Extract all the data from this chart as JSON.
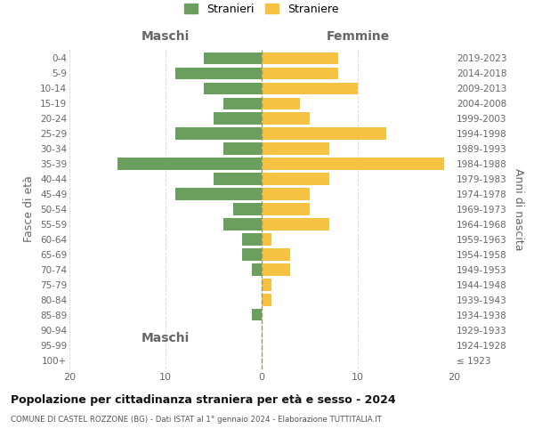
{
  "age_groups": [
    "100+",
    "95-99",
    "90-94",
    "85-89",
    "80-84",
    "75-79",
    "70-74",
    "65-69",
    "60-64",
    "55-59",
    "50-54",
    "45-49",
    "40-44",
    "35-39",
    "30-34",
    "25-29",
    "20-24",
    "15-19",
    "10-14",
    "5-9",
    "0-4"
  ],
  "birth_years": [
    "≤ 1923",
    "1924-1928",
    "1929-1933",
    "1934-1938",
    "1939-1943",
    "1944-1948",
    "1949-1953",
    "1954-1958",
    "1959-1963",
    "1964-1968",
    "1969-1973",
    "1974-1978",
    "1979-1983",
    "1984-1988",
    "1989-1993",
    "1994-1998",
    "1999-2003",
    "2004-2008",
    "2009-2013",
    "2014-2018",
    "2019-2023"
  ],
  "maschi": [
    0,
    0,
    0,
    1,
    0,
    0,
    1,
    2,
    2,
    4,
    3,
    9,
    5,
    15,
    4,
    9,
    5,
    4,
    6,
    9,
    6
  ],
  "femmine": [
    0,
    0,
    0,
    0,
    1,
    1,
    3,
    3,
    1,
    7,
    5,
    5,
    7,
    19,
    7,
    13,
    5,
    4,
    10,
    8,
    8
  ],
  "color_maschi": "#6a9f5e",
  "color_femmine": "#f5c242",
  "title": "Popolazione per cittadinanza straniera per età e sesso - 2024",
  "subtitle": "COMUNE DI CASTEL ROZZONE (BG) - Dati ISTAT al 1° gennaio 2024 - Elaborazione TUTTITALIA.IT",
  "ylabel_left": "Fasce di età",
  "ylabel_right": "Anni di nascita",
  "xlabel_maschi": "Maschi",
  "xlabel_femmine": "Femmine",
  "legend_maschi": "Stranieri",
  "legend_femmine": "Straniere",
  "xlim": 20,
  "background_color": "#ffffff",
  "grid_color": "#dddddd",
  "text_color": "#666666",
  "axis_tick_color": "#888888"
}
